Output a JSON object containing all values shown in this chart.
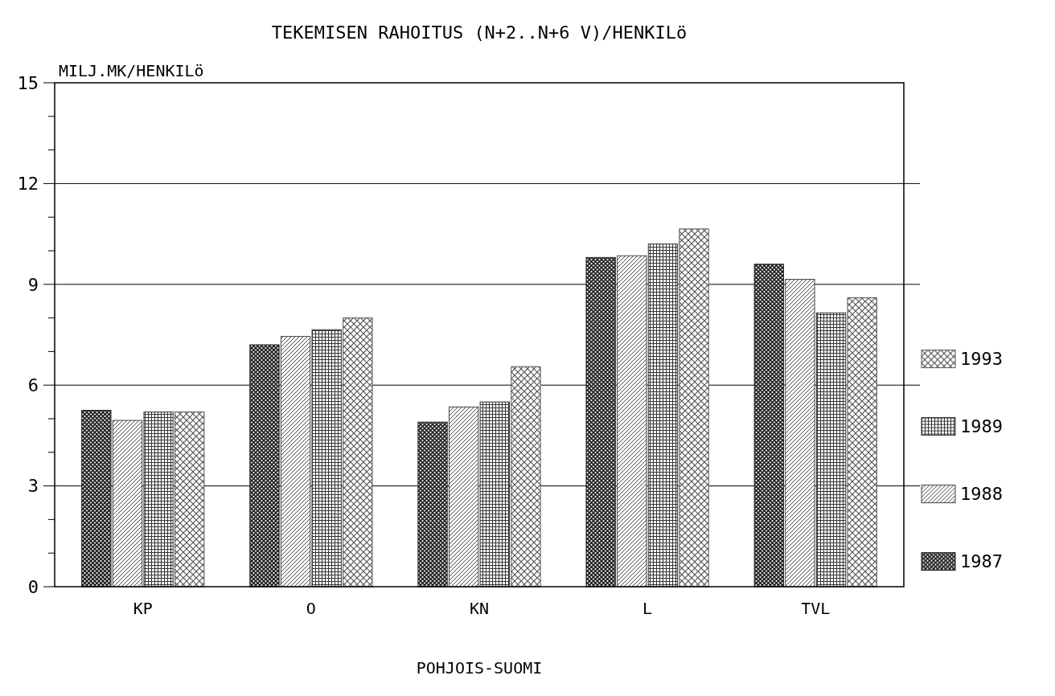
{
  "chart_data": {
    "type": "bar",
    "title": "TEKEMISEN RAHOITUS (N+2..N+6 V)/HENKILö",
    "ylabel": "MILJ.MK/HENKILö",
    "xlabel": "POHJOIS-SUOMI",
    "categories": [
      "KP",
      "O",
      "KN",
      "L",
      "TVL"
    ],
    "series": [
      {
        "name": "1987",
        "color": "#222222",
        "values": [
          5.25,
          7.2,
          4.9,
          9.8,
          9.6
        ]
      },
      {
        "name": "1988",
        "color": "#444444",
        "values": [
          4.95,
          7.45,
          5.35,
          9.85,
          9.15
        ]
      },
      {
        "name": "1989",
        "color": "#333333",
        "values": [
          5.2,
          7.65,
          5.5,
          10.2,
          8.15
        ]
      },
      {
        "name": "1993",
        "color": "#555555",
        "values": [
          5.2,
          8.0,
          6.55,
          10.65,
          8.6
        ]
      }
    ],
    "ylim": [
      0,
      15
    ],
    "yticks": [
      0,
      {
        "value": 1,
        "label": null
      },
      {
        "value": 2,
        "label": null
      },
      3,
      {
        "value": 4,
        "label": null
      },
      {
        "value": 5,
        "label": null
      },
      6,
      {
        "value": 7,
        "label": null
      },
      {
        "value": 8,
        "label": null
      },
      9,
      {
        "value": 10,
        "label": null
      },
      {
        "value": 11,
        "label": null
      },
      12,
      {
        "value": 13,
        "label": null
      },
      {
        "value": 14,
        "label": null
      },
      15
    ],
    "grid": "y",
    "legend": "right"
  }
}
